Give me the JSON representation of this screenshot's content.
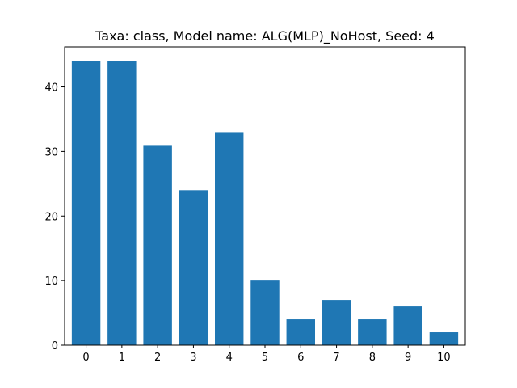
{
  "chart_data": {
    "type": "bar",
    "title": "Taxa: class, Model name: ALG(MLP)_NoHost, Seed: 4",
    "xlabel": "",
    "ylabel": "",
    "categories": [
      "0",
      "1",
      "2",
      "3",
      "4",
      "5",
      "6",
      "7",
      "8",
      "9",
      "10"
    ],
    "values": [
      44,
      44,
      31,
      24,
      33,
      10,
      4,
      7,
      4,
      6,
      2
    ],
    "xlim": [
      -0.6,
      10.6
    ],
    "ylim": [
      0,
      46.2
    ],
    "yticks": [
      "0",
      "10",
      "20",
      "30",
      "40"
    ],
    "bar_color": "#1f77b4",
    "grid": false
  }
}
